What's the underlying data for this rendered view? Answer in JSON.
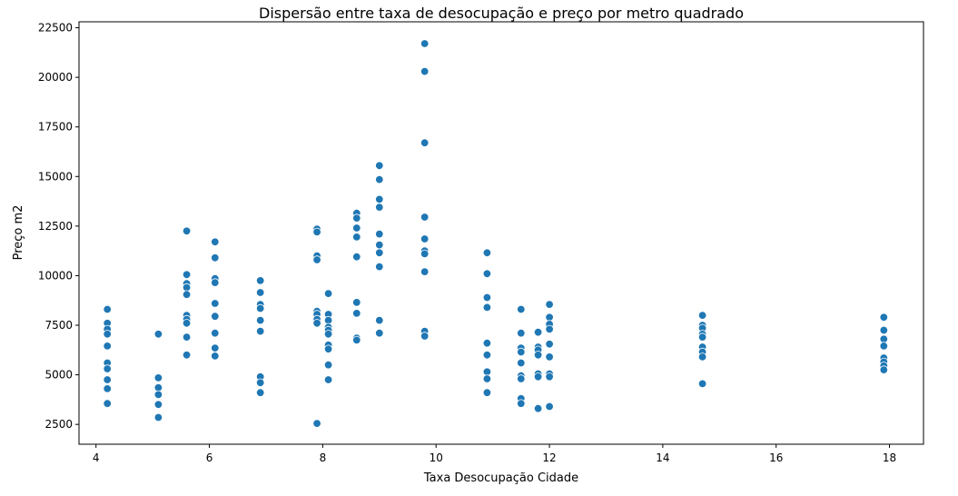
{
  "chart_data": {
    "type": "scatter",
    "title": "Dispersão entre taxa de desocupação e preço por metro quadrado",
    "xlabel": "Taxa Desocupação Cidade",
    "ylabel": "Preço m2",
    "xlim": [
      3.7,
      18.6
    ],
    "ylim": [
      1500,
      22800
    ],
    "xticks": [
      4,
      6,
      8,
      10,
      12,
      14,
      16,
      18
    ],
    "yticks": [
      2500,
      5000,
      7500,
      10000,
      12500,
      15000,
      17500,
      20000,
      22500
    ],
    "grid": false,
    "color": "#1f77b4",
    "points": [
      {
        "x": 4.2,
        "y": 8300
      },
      {
        "x": 4.2,
        "y": 7600
      },
      {
        "x": 4.2,
        "y": 7300
      },
      {
        "x": 4.2,
        "y": 7050
      },
      {
        "x": 4.2,
        "y": 6450
      },
      {
        "x": 4.2,
        "y": 5600
      },
      {
        "x": 4.2,
        "y": 5300
      },
      {
        "x": 4.2,
        "y": 4750
      },
      {
        "x": 4.2,
        "y": 4300
      },
      {
        "x": 4.2,
        "y": 3550
      },
      {
        "x": 5.1,
        "y": 7050
      },
      {
        "x": 5.1,
        "y": 4850
      },
      {
        "x": 5.1,
        "y": 4350
      },
      {
        "x": 5.1,
        "y": 4000
      },
      {
        "x": 5.1,
        "y": 3500
      },
      {
        "x": 5.1,
        "y": 2850
      },
      {
        "x": 5.6,
        "y": 12250
      },
      {
        "x": 5.6,
        "y": 10050
      },
      {
        "x": 5.6,
        "y": 9600
      },
      {
        "x": 5.6,
        "y": 9400
      },
      {
        "x": 5.6,
        "y": 9050
      },
      {
        "x": 5.6,
        "y": 8000
      },
      {
        "x": 5.6,
        "y": 7800
      },
      {
        "x": 5.6,
        "y": 7600
      },
      {
        "x": 5.6,
        "y": 6900
      },
      {
        "x": 5.6,
        "y": 6000
      },
      {
        "x": 6.1,
        "y": 11700
      },
      {
        "x": 6.1,
        "y": 10900
      },
      {
        "x": 6.1,
        "y": 9850
      },
      {
        "x": 6.1,
        "y": 9650
      },
      {
        "x": 6.1,
        "y": 8600
      },
      {
        "x": 6.1,
        "y": 7950
      },
      {
        "x": 6.1,
        "y": 7100
      },
      {
        "x": 6.1,
        "y": 6350
      },
      {
        "x": 6.1,
        "y": 5950
      },
      {
        "x": 6.9,
        "y": 9750
      },
      {
        "x": 6.9,
        "y": 9150
      },
      {
        "x": 6.9,
        "y": 8550
      },
      {
        "x": 6.9,
        "y": 8350
      },
      {
        "x": 6.9,
        "y": 7750
      },
      {
        "x": 6.9,
        "y": 7200
      },
      {
        "x": 6.9,
        "y": 4900
      },
      {
        "x": 6.9,
        "y": 4600
      },
      {
        "x": 6.9,
        "y": 4100
      },
      {
        "x": 7.9,
        "y": 12350
      },
      {
        "x": 7.9,
        "y": 12200
      },
      {
        "x": 7.9,
        "y": 11000
      },
      {
        "x": 7.9,
        "y": 10800
      },
      {
        "x": 7.9,
        "y": 8200
      },
      {
        "x": 7.9,
        "y": 8050
      },
      {
        "x": 7.9,
        "y": 7800
      },
      {
        "x": 7.9,
        "y": 7600
      },
      {
        "x": 7.9,
        "y": 2550
      },
      {
        "x": 8.1,
        "y": 9100
      },
      {
        "x": 8.1,
        "y": 8050
      },
      {
        "x": 8.1,
        "y": 7750
      },
      {
        "x": 8.1,
        "y": 7400
      },
      {
        "x": 8.1,
        "y": 7250
      },
      {
        "x": 8.1,
        "y": 7050
      },
      {
        "x": 8.1,
        "y": 6500
      },
      {
        "x": 8.1,
        "y": 6300
      },
      {
        "x": 8.1,
        "y": 5500
      },
      {
        "x": 8.1,
        "y": 4750
      },
      {
        "x": 8.6,
        "y": 13150
      },
      {
        "x": 8.6,
        "y": 12900
      },
      {
        "x": 8.6,
        "y": 12400
      },
      {
        "x": 8.6,
        "y": 11950
      },
      {
        "x": 8.6,
        "y": 10950
      },
      {
        "x": 8.6,
        "y": 8650
      },
      {
        "x": 8.6,
        "y": 8100
      },
      {
        "x": 8.6,
        "y": 6850
      },
      {
        "x": 8.6,
        "y": 6750
      },
      {
        "x": 9.0,
        "y": 15550
      },
      {
        "x": 9.0,
        "y": 14850
      },
      {
        "x": 9.0,
        "y": 13850
      },
      {
        "x": 9.0,
        "y": 13450
      },
      {
        "x": 9.0,
        "y": 12100
      },
      {
        "x": 9.0,
        "y": 11550
      },
      {
        "x": 9.0,
        "y": 11150
      },
      {
        "x": 9.0,
        "y": 10450
      },
      {
        "x": 9.0,
        "y": 7750
      },
      {
        "x": 9.0,
        "y": 7100
      },
      {
        "x": 9.8,
        "y": 21700
      },
      {
        "x": 9.8,
        "y": 20300
      },
      {
        "x": 9.8,
        "y": 16700
      },
      {
        "x": 9.8,
        "y": 12950
      },
      {
        "x": 9.8,
        "y": 11850
      },
      {
        "x": 9.8,
        "y": 11250
      },
      {
        "x": 9.8,
        "y": 11100
      },
      {
        "x": 9.8,
        "y": 10200
      },
      {
        "x": 9.8,
        "y": 7200
      },
      {
        "x": 9.8,
        "y": 6950
      },
      {
        "x": 10.9,
        "y": 11150
      },
      {
        "x": 10.9,
        "y": 10100
      },
      {
        "x": 10.9,
        "y": 8900
      },
      {
        "x": 10.9,
        "y": 8400
      },
      {
        "x": 10.9,
        "y": 6600
      },
      {
        "x": 10.9,
        "y": 6000
      },
      {
        "x": 10.9,
        "y": 5150
      },
      {
        "x": 10.9,
        "y": 4800
      },
      {
        "x": 10.9,
        "y": 4100
      },
      {
        "x": 11.5,
        "y": 8300
      },
      {
        "x": 11.5,
        "y": 7100
      },
      {
        "x": 11.5,
        "y": 6350
      },
      {
        "x": 11.5,
        "y": 6150
      },
      {
        "x": 11.5,
        "y": 5600
      },
      {
        "x": 11.5,
        "y": 4950
      },
      {
        "x": 11.5,
        "y": 4800
      },
      {
        "x": 11.5,
        "y": 3800
      },
      {
        "x": 11.5,
        "y": 3550
      },
      {
        "x": 11.8,
        "y": 7150
      },
      {
        "x": 11.8,
        "y": 6400
      },
      {
        "x": 11.8,
        "y": 6250
      },
      {
        "x": 11.8,
        "y": 6000
      },
      {
        "x": 11.8,
        "y": 5050
      },
      {
        "x": 11.8,
        "y": 4900
      },
      {
        "x": 11.8,
        "y": 3300
      },
      {
        "x": 12.0,
        "y": 8550
      },
      {
        "x": 12.0,
        "y": 7900
      },
      {
        "x": 12.0,
        "y": 7550
      },
      {
        "x": 12.0,
        "y": 7300
      },
      {
        "x": 12.0,
        "y": 6550
      },
      {
        "x": 12.0,
        "y": 5900
      },
      {
        "x": 12.0,
        "y": 5050
      },
      {
        "x": 12.0,
        "y": 4900
      },
      {
        "x": 12.0,
        "y": 3400
      },
      {
        "x": 14.7,
        "y": 8000
      },
      {
        "x": 14.7,
        "y": 7500
      },
      {
        "x": 14.7,
        "y": 7350
      },
      {
        "x": 14.7,
        "y": 7050
      },
      {
        "x": 14.7,
        "y": 6900
      },
      {
        "x": 14.7,
        "y": 6400
      },
      {
        "x": 14.7,
        "y": 6150
      },
      {
        "x": 14.7,
        "y": 5900
      },
      {
        "x": 14.7,
        "y": 4550
      },
      {
        "x": 17.9,
        "y": 7900
      },
      {
        "x": 17.9,
        "y": 7250
      },
      {
        "x": 17.9,
        "y": 6800
      },
      {
        "x": 17.9,
        "y": 6450
      },
      {
        "x": 17.9,
        "y": 5850
      },
      {
        "x": 17.9,
        "y": 5650
      },
      {
        "x": 17.9,
        "y": 5450
      },
      {
        "x": 17.9,
        "y": 5250
      }
    ]
  }
}
